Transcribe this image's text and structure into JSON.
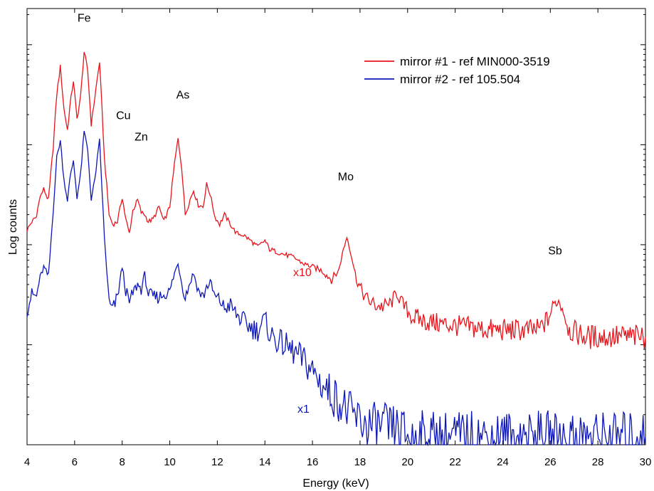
{
  "chart_data": {
    "type": "line",
    "xlabel": "Energy (keV)",
    "ylabel": "Log counts",
    "xlim": [
      4,
      30
    ],
    "y_scale": "log",
    "y_tick_labels_shown": false,
    "x_ticks": [
      4,
      6,
      8,
      10,
      12,
      14,
      16,
      18,
      20,
      22,
      24,
      26,
      28,
      30
    ],
    "x_tick_labels": [
      "4",
      "6",
      "8",
      "10",
      "12",
      "14",
      "16",
      "18",
      "20",
      "22",
      "24",
      "26",
      "28",
      "30"
    ],
    "legend_position": "top-right",
    "series": [
      {
        "name": "mirror #1 - ref MIN000-3519",
        "color": "#e8141b",
        "scale_label": "x10",
        "x": [
          4.0,
          4.2,
          4.4,
          4.5,
          4.7,
          4.9,
          5.1,
          5.25,
          5.4,
          5.55,
          5.7,
          5.8,
          5.95,
          6.1,
          6.25,
          6.4,
          6.55,
          6.7,
          6.85,
          7.05,
          7.25,
          7.45,
          7.6,
          7.8,
          8.0,
          8.15,
          8.3,
          8.45,
          8.65,
          8.8,
          8.95,
          9.1,
          9.3,
          9.55,
          9.75,
          10.0,
          10.2,
          10.35,
          10.5,
          10.65,
          10.85,
          11.0,
          11.2,
          11.4,
          11.55,
          11.7,
          11.9,
          12.1,
          12.3,
          12.55,
          12.8,
          13.1,
          13.4,
          13.7,
          14.0,
          14.2,
          14.5,
          14.8,
          15.2,
          15.6,
          16.0,
          16.4,
          16.8,
          17.1,
          17.3,
          17.45,
          17.6,
          17.85,
          18.2,
          18.6,
          19.0,
          19.3,
          19.55,
          19.8,
          20.2,
          20.8,
          21.5,
          22.5,
          23.5,
          24.5,
          25.5,
          25.9,
          26.15,
          26.3,
          26.5,
          26.8,
          27.5,
          28.5,
          29.5,
          30.0
        ],
        "y": [
          1400,
          1700,
          1900,
          2800,
          3600,
          2800,
          9500,
          32000,
          60000,
          23000,
          14000,
          24000,
          44000,
          18000,
          30000,
          85000,
          55000,
          16000,
          30000,
          68000,
          7500,
          2000,
          1600,
          1700,
          3000,
          1800,
          1300,
          2200,
          2800,
          2100,
          2000,
          1700,
          1800,
          2400,
          1700,
          2400,
          6500,
          11500,
          6000,
          2000,
          2800,
          3500,
          2500,
          2400,
          4000,
          3200,
          1900,
          1600,
          2000,
          1600,
          1300,
          1250,
          1100,
          950,
          1100,
          900,
          850,
          800,
          750,
          650,
          600,
          550,
          450,
          550,
          900,
          1200,
          850,
          450,
          300,
          250,
          240,
          260,
          330,
          250,
          190,
          170,
          160,
          150,
          140,
          140,
          140,
          180,
          250,
          280,
          240,
          140,
          120,
          120,
          120,
          120
        ]
      },
      {
        "name": "mirror #2 - ref 105.504",
        "color": "#0d16b8",
        "scale_label": "x1",
        "x": [
          4.0,
          4.2,
          4.4,
          4.5,
          4.7,
          4.9,
          5.1,
          5.25,
          5.4,
          5.55,
          5.7,
          5.8,
          5.95,
          6.1,
          6.25,
          6.4,
          6.55,
          6.7,
          6.85,
          7.05,
          7.25,
          7.45,
          7.6,
          7.8,
          8.0,
          8.15,
          8.3,
          8.45,
          8.65,
          8.8,
          8.95,
          9.1,
          9.3,
          9.55,
          9.75,
          10.0,
          10.2,
          10.35,
          10.5,
          10.65,
          10.85,
          11.0,
          11.2,
          11.4,
          11.55,
          11.7,
          11.9,
          12.1,
          12.3,
          12.55,
          12.8,
          13.1,
          13.4,
          13.7,
          14.0,
          14.2,
          14.5,
          14.8,
          15.2,
          15.6,
          16.0,
          16.4,
          16.8,
          17.1,
          17.3,
          17.45,
          17.6,
          17.85,
          18.2,
          18.6,
          19.0,
          19.3,
          19.55,
          19.8,
          20.2,
          20.8,
          21.5,
          22.5,
          23.5,
          24.5,
          25.5,
          25.9,
          26.15,
          26.3,
          26.5,
          26.8,
          27.5,
          28.5,
          29.5,
          30.0
        ],
        "y": [
          230,
          320,
          300,
          420,
          600,
          480,
          2200,
          7500,
          11000,
          4500,
          2800,
          4500,
          7000,
          3000,
          5000,
          13500,
          9000,
          2800,
          4500,
          11000,
          1200,
          260,
          220,
          300,
          600,
          350,
          260,
          330,
          400,
          360,
          500,
          320,
          300,
          300,
          320,
          340,
          520,
          650,
          420,
          300,
          420,
          520,
          350,
          300,
          380,
          420,
          300,
          280,
          230,
          250,
          200,
          170,
          150,
          140,
          180,
          130,
          110,
          100,
          85,
          70,
          55,
          40,
          32,
          28,
          24,
          22,
          20,
          18,
          16,
          15,
          15,
          14,
          14,
          13,
          12,
          12,
          12,
          12,
          12,
          12,
          12,
          12,
          12,
          12,
          12,
          12,
          12,
          12,
          12,
          12
        ]
      }
    ],
    "annotations": [
      {
        "label": "Fe",
        "x": 6.4,
        "y": 170000
      },
      {
        "label": "Cu",
        "x": 8.05,
        "y": 18000
      },
      {
        "label": "Zn",
        "x": 8.8,
        "y": 11000
      },
      {
        "label": "As",
        "x": 10.55,
        "y": 29000
      },
      {
        "label": "Mo",
        "x": 17.4,
        "y": 4400
      },
      {
        "label": "Sb",
        "x": 26.2,
        "y": 800
      }
    ]
  }
}
